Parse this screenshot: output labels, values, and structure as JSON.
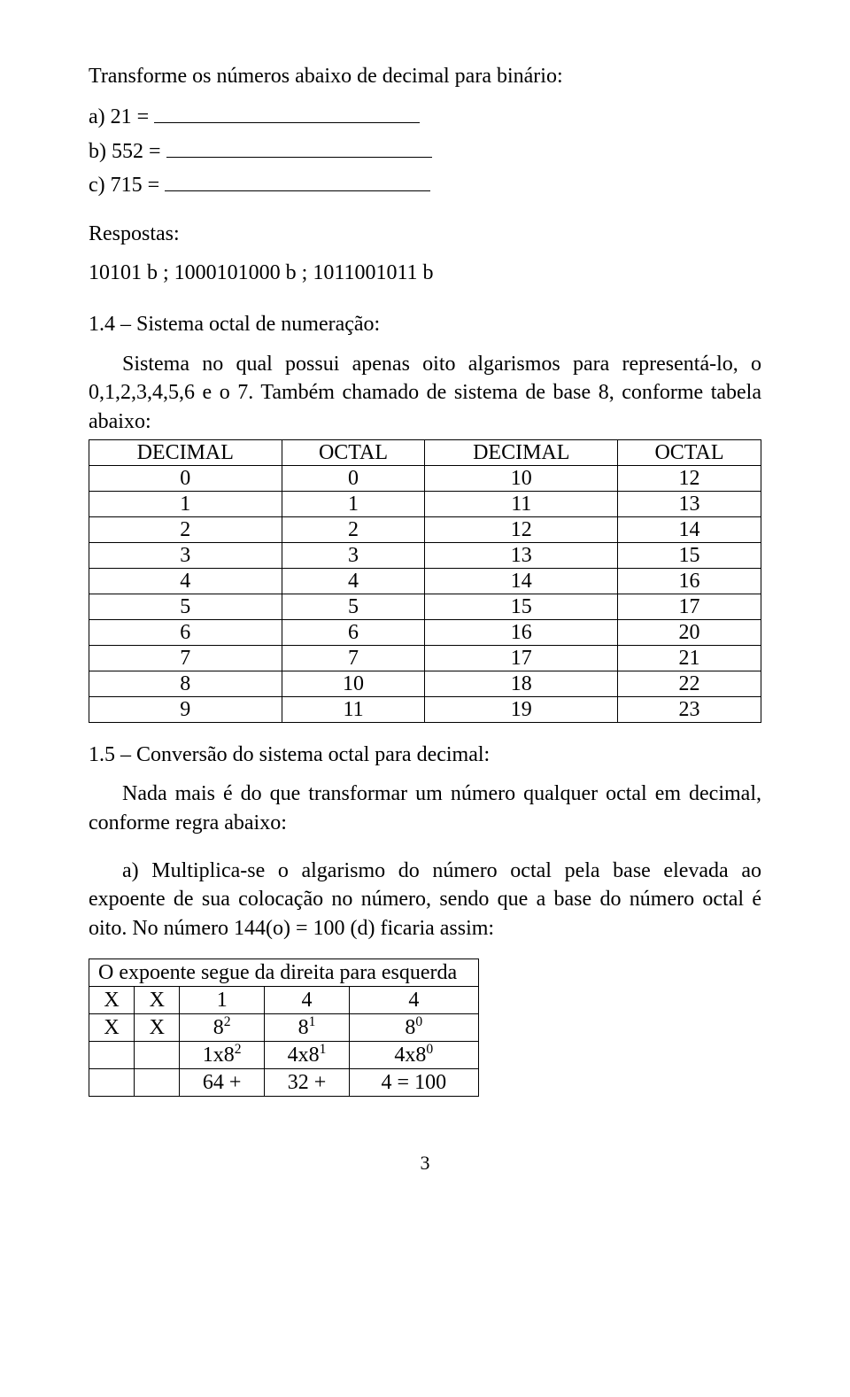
{
  "intro_prompt": "Transforme os números abaixo de  decimal para binário:",
  "items": {
    "a_label": "a) 21 =",
    "b_label": "b) 552 =",
    "c_label": "c) 715 ="
  },
  "answers_label": "Respostas:",
  "answers_line": "10101 b ;  1000101000 b ; 1011001011 b",
  "section14_title": "1.4 – Sistema octal de numeração:",
  "section14_body": "Sistema no qual possui apenas oito algarismos para representá-lo, o 0,1,2,3,4,5,6 e o 7. Também chamado de sistema de base 8, conforme tabela abaixo:",
  "table_header": [
    "DECIMAL",
    "OCTAL",
    "DECIMAL",
    "OCTAL"
  ],
  "table_rows": [
    [
      "0",
      "0",
      "10",
      "12"
    ],
    [
      "1",
      "1",
      "11",
      "13"
    ],
    [
      "2",
      "2",
      "12",
      "14"
    ],
    [
      "3",
      "3",
      "13",
      "15"
    ],
    [
      "4",
      "4",
      "14",
      "16"
    ],
    [
      "5",
      "5",
      "15",
      "17"
    ],
    [
      "6",
      "6",
      "16",
      "20"
    ],
    [
      "7",
      "7",
      "17",
      "21"
    ],
    [
      "8",
      "10",
      "18",
      "22"
    ],
    [
      "9",
      "11",
      "19",
      "23"
    ]
  ],
  "section15_title": "1.5 –  Conversão do sistema octal para decimal:",
  "section15_body1": "Nada mais é do que transformar um número qualquer octal em decimal, conforme regra abaixo:",
  "section15_body2": "a) Multiplica-se o algarismo do número octal pela base elevada ao expoente de sua colocação no número, sendo que a base do número octal é oito. No número 144(o) = 100 (d)  ficaria assim:",
  "eq_title": "O expoente segue da direita para esquerda",
  "eq_row1": [
    "X",
    "X",
    "1",
    "4",
    "4"
  ],
  "eq_row2_bases": [
    "X",
    "X",
    "8",
    "8",
    "8"
  ],
  "eq_row2_exp": [
    "",
    "",
    "2",
    "1",
    "0"
  ],
  "eq_row3_pre": [
    "",
    "",
    "1x8",
    "4x8",
    "4x8"
  ],
  "eq_row3_exp": [
    "",
    "",
    "2",
    "1",
    "0"
  ],
  "eq_row4": [
    "",
    "",
    "64   +",
    "32   +",
    "4  = 100"
  ],
  "page_number": "3"
}
